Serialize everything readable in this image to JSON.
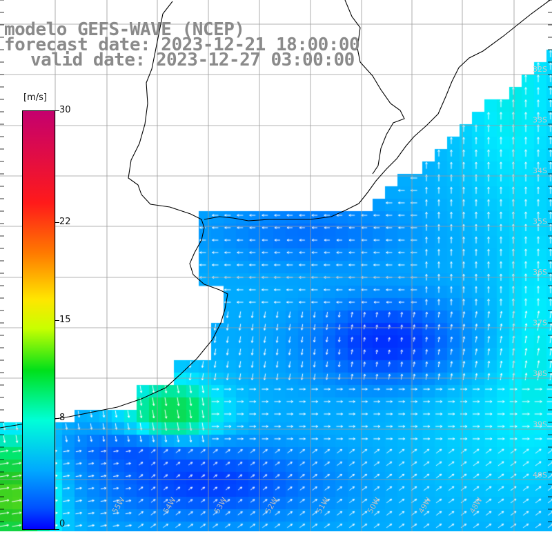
{
  "titles": {
    "line1": "modelo GEFS-WAVE (NCEP)",
    "line2": "forecast date: 2023-12-21 18:00:00",
    "line3": "valid date: 2023-12-27 03:00:00"
  },
  "colorbar": {
    "unit": "[m/s]",
    "ticks": [
      {
        "value": 30,
        "label": "30"
      },
      {
        "value": 22,
        "label": "22"
      },
      {
        "value": 15,
        "label": "15"
      },
      {
        "value": 8,
        "label": "8"
      },
      {
        "value": 0,
        "label": "0"
      }
    ],
    "range": [
      0,
      30
    ]
  },
  "grid": {
    "lon_labels": [
      "55W",
      "54W",
      "53W",
      "52W",
      "51W",
      "50W",
      "49W",
      "48W"
    ],
    "lat_labels": [
      "32S",
      "33S",
      "34S",
      "35S",
      "36S",
      "37S",
      "38S",
      "39S",
      "40S"
    ]
  },
  "colors": {
    "land": "#ffffff",
    "coast": "#000000",
    "grid": "#9a9a9a",
    "arrows": "#ffffff",
    "title": "#8a8a8a"
  }
}
